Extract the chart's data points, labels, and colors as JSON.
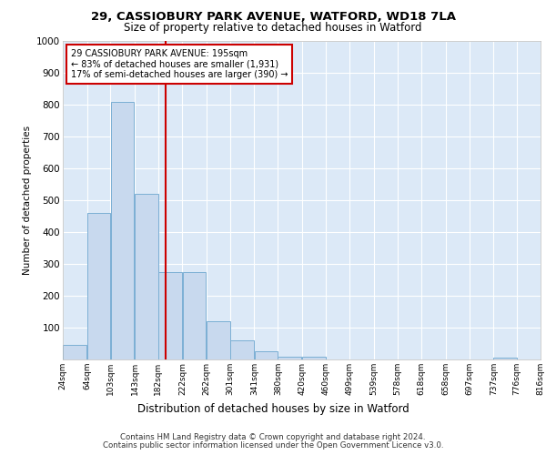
{
  "title_line1": "29, CASSIOBURY PARK AVENUE, WATFORD, WD18 7LA",
  "title_line2": "Size of property relative to detached houses in Watford",
  "xlabel": "Distribution of detached houses by size in Watford",
  "ylabel": "Number of detached properties",
  "footer_line1": "Contains HM Land Registry data © Crown copyright and database right 2024.",
  "footer_line2": "Contains public sector information licensed under the Open Government Licence v3.0.",
  "bar_left_edges": [
    24,
    64,
    103,
    143,
    182,
    222,
    262,
    301,
    341,
    380,
    420,
    460,
    499,
    539,
    578,
    618,
    658,
    697,
    737,
    776
  ],
  "bar_heights": [
    47,
    460,
    810,
    520,
    275,
    275,
    120,
    60,
    25,
    10,
    10,
    0,
    0,
    0,
    0,
    0,
    0,
    0,
    5,
    0
  ],
  "bin_width": 39,
  "bar_color": "#c8d9ee",
  "bar_edge_color": "#7bafd4",
  "tick_labels": [
    "24sqm",
    "64sqm",
    "103sqm",
    "143sqm",
    "182sqm",
    "222sqm",
    "262sqm",
    "301sqm",
    "341sqm",
    "380sqm",
    "420sqm",
    "460sqm",
    "499sqm",
    "539sqm",
    "578sqm",
    "618sqm",
    "658sqm",
    "697sqm",
    "737sqm",
    "776sqm",
    "816sqm"
  ],
  "vline_x": 195,
  "vline_color": "#cc0000",
  "annotation_text": "29 CASSIOBURY PARK AVENUE: 195sqm\n← 83% of detached houses are smaller (1,931)\n17% of semi-detached houses are larger (390) →",
  "annotation_box_color": "#cc0000",
  "ylim": [
    0,
    1000
  ],
  "yticks": [
    0,
    100,
    200,
    300,
    400,
    500,
    600,
    700,
    800,
    900,
    1000
  ],
  "bg_color": "#ffffff",
  "plot_bg": "#dce9f7",
  "grid_color": "#ffffff",
  "figsize": [
    6.0,
    5.0
  ],
  "dpi": 100
}
